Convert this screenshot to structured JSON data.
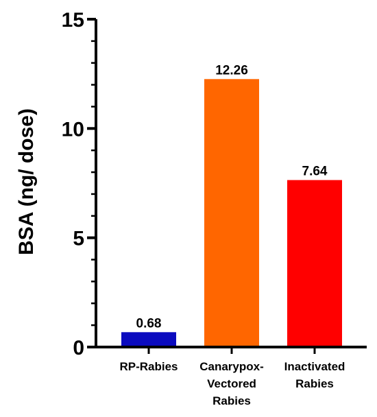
{
  "chart_data": {
    "type": "bar",
    "title": "",
    "xlabel": "",
    "ylabel": "BSA (ng/ dose)",
    "ylim": [
      0,
      15
    ],
    "yticks": [
      0,
      5,
      10,
      15
    ],
    "grid": false,
    "categories": [
      [
        "RP-Rabies"
      ],
      [
        "Canarypox-",
        "Vectored",
        "Rabies"
      ],
      [
        "Inactivated",
        "Rabies"
      ]
    ],
    "values": [
      0.68,
      12.26,
      7.64
    ],
    "data_labels": [
      "0.68",
      "12.26",
      "7.64"
    ],
    "colors": [
      "#0b0bbf",
      "#ff6600",
      "#ff0000"
    ]
  }
}
